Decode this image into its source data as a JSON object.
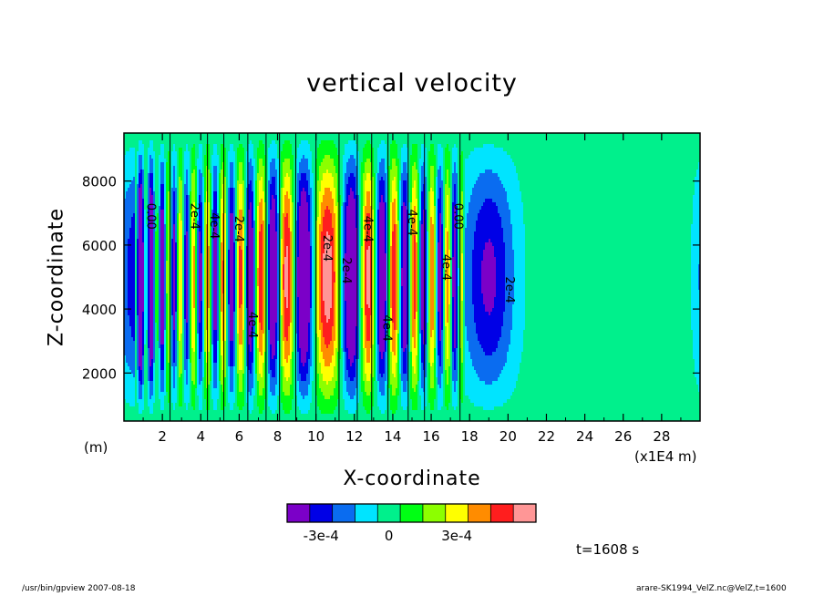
{
  "chart_data": {
    "type": "heatmap",
    "title": "vertical velocity",
    "xlabel": "X-coordinate",
    "ylabel": "Z-coordinate",
    "x_unit": "(x1E4 m)",
    "y_unit": "(m)",
    "xlim": [
      0,
      30
    ],
    "ylim": [
      500,
      9500
    ],
    "x_ticks": [
      2,
      4,
      6,
      8,
      10,
      12,
      14,
      16,
      18,
      20,
      22,
      24,
      26,
      28
    ],
    "y_ticks": [
      2000,
      4000,
      6000,
      8000
    ],
    "colorbar": {
      "colors": [
        "#7b00c8",
        "#0000e6",
        "#0a6cf0",
        "#00e4ff",
        "#00f08c",
        "#00ff14",
        "#8cff00",
        "#ffff00",
        "#ff8c00",
        "#ff1e1e",
        "#ff9696"
      ],
      "tick_labels": [
        "-3e-4",
        "0",
        "3e-4"
      ],
      "tick_values": [
        -0.0003,
        0,
        0.0003
      ]
    },
    "contour_labels": [
      "0.00",
      "2e-4",
      "4e-4",
      "2e-4",
      "4e-4",
      "2e-4",
      "2e-4",
      "4e-4",
      "4e-4",
      "4e-4",
      "0.00",
      "4e-4",
      "2e-4"
    ],
    "time_label": "t=1608 s"
  },
  "footer": {
    "left": "/usr/bin/gpview   2007-08-18",
    "right": "arare-SK1994_VelZ.nc@VelZ,t=1600"
  }
}
